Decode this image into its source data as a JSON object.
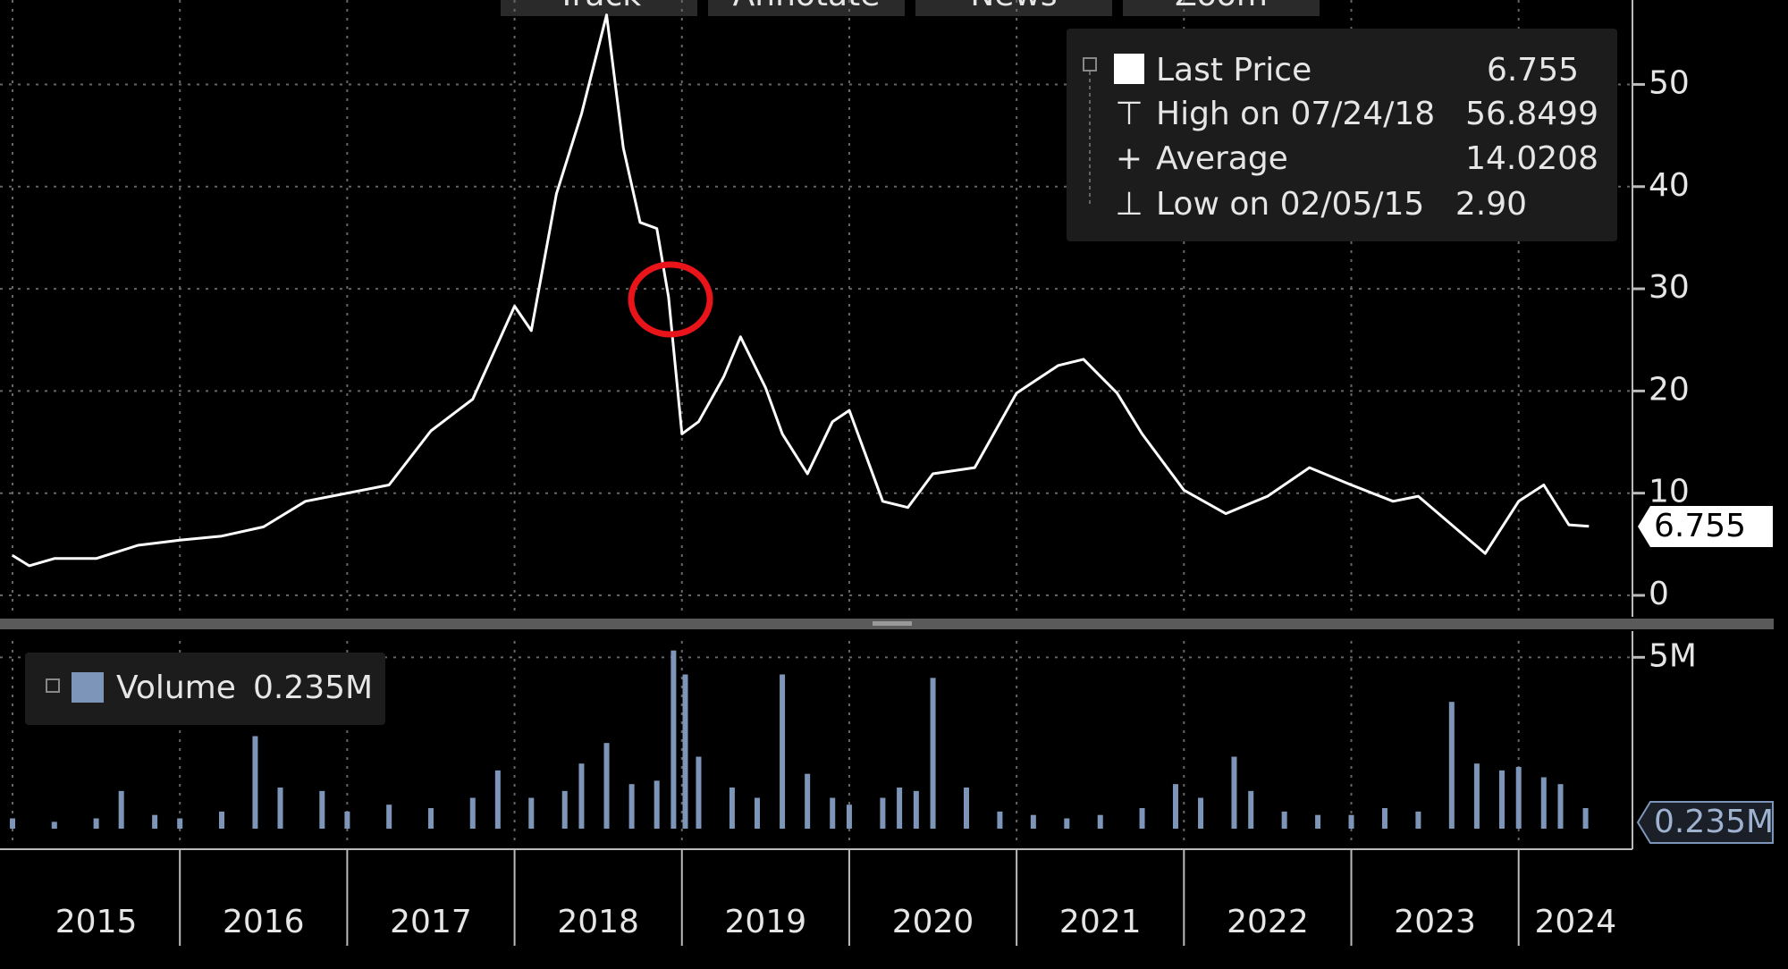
{
  "toolbar": [
    "Track",
    "Annotate",
    "News",
    "Zoom"
  ],
  "chart_data": [
    {
      "type": "line",
      "series": [
        {
          "name": "Last Price",
          "color": "#ffffff",
          "x": [
            2015.0,
            2015.1,
            2015.25,
            2015.5,
            2015.75,
            2016.0,
            2016.25,
            2016.5,
            2016.75,
            2017.0,
            2017.25,
            2017.5,
            2017.75,
            2018.0,
            2018.1,
            2018.25,
            2018.4,
            2018.55,
            2018.65,
            2018.75,
            2018.85,
            2018.92,
            2019.0,
            2019.1,
            2019.25,
            2019.35,
            2019.5,
            2019.6,
            2019.75,
            2019.9,
            2020.0,
            2020.2,
            2020.35,
            2020.5,
            2020.75,
            2021.0,
            2021.25,
            2021.4,
            2021.6,
            2021.75,
            2022.0,
            2022.25,
            2022.5,
            2022.75,
            2023.0,
            2023.25,
            2023.4,
            2023.6,
            2023.8,
            2024.0,
            2024.15,
            2024.3,
            2024.42
          ],
          "values": [
            3.9,
            2.9,
            3.6,
            3.6,
            4.9,
            5.4,
            5.8,
            6.7,
            9.2,
            10.0,
            10.8,
            16.1,
            19.2,
            28.3,
            25.9,
            39.3,
            47.1,
            56.8,
            43.8,
            36.5,
            35.9,
            29.2,
            15.8,
            17.0,
            21.4,
            25.3,
            20.3,
            15.8,
            11.9,
            17.0,
            18.1,
            9.2,
            8.6,
            11.9,
            12.5,
            19.8,
            22.5,
            23.1,
            19.8,
            15.8,
            10.3,
            8.0,
            9.7,
            12.5,
            10.8,
            9.2,
            9.7,
            6.9,
            4.1,
            9.2,
            10.8,
            6.9,
            6.755
          ]
        }
      ],
      "xlim": [
        2015,
        2024.68
      ],
      "xticks": [
        2015,
        2016,
        2017,
        2018,
        2019,
        2020,
        2021,
        2022,
        2023,
        2024
      ],
      "ylim": [
        0,
        58
      ],
      "yticks": [
        0,
        10,
        20,
        30,
        40,
        50
      ],
      "grid": true,
      "stats": [
        {
          "label": "High on 07/24/18",
          "value": "56.8499"
        },
        {
          "label": "Average",
          "value": "14.0208"
        },
        {
          "label": "Low on 02/05/15",
          "value": "2.90"
        }
      ]
    },
    {
      "type": "bar",
      "series": [
        {
          "name": "Volume",
          "color": "#7d95b8",
          "x": [
            2015.0,
            2015.25,
            2015.5,
            2015.65,
            2015.85,
            2016.0,
            2016.25,
            2016.45,
            2016.6,
            2016.85,
            2017.0,
            2017.25,
            2017.5,
            2017.75,
            2017.9,
            2018.1,
            2018.3,
            2018.4,
            2018.55,
            2018.7,
            2018.85,
            2018.95,
            2019.02,
            2019.1,
            2019.3,
            2019.45,
            2019.6,
            2019.75,
            2019.9,
            2020.0,
            2020.2,
            2020.3,
            2020.4,
            2020.5,
            2020.7,
            2020.9,
            2021.1,
            2021.3,
            2021.5,
            2021.75,
            2021.95,
            2022.1,
            2022.3,
            2022.4,
            2022.6,
            2022.8,
            2023.0,
            2023.2,
            2023.4,
            2023.6,
            2023.75,
            2023.9,
            2024.0,
            2024.15,
            2024.25,
            2024.4
          ],
          "values": [
            0.3,
            0.2,
            0.3,
            1.1,
            0.4,
            0.3,
            0.5,
            2.7,
            1.2,
            1.1,
            0.5,
            0.7,
            0.6,
            0.9,
            1.7,
            0.9,
            1.1,
            1.9,
            2.5,
            1.3,
            1.4,
            5.2,
            4.5,
            2.1,
            1.2,
            0.9,
            4.5,
            1.6,
            0.9,
            0.7,
            0.9,
            1.2,
            1.1,
            4.4,
            1.2,
            0.5,
            0.4,
            0.3,
            0.4,
            0.6,
            1.3,
            0.9,
            2.1,
            1.1,
            0.5,
            0.4,
            0.4,
            0.6,
            0.5,
            3.7,
            1.9,
            1.7,
            1.8,
            1.5,
            1.3,
            0.6
          ]
        }
      ],
      "ylim": [
        0,
        5.4
      ],
      "yticks": [
        {
          "value": 5,
          "label": "5M"
        }
      ],
      "last_label": "0.235M"
    }
  ]
}
